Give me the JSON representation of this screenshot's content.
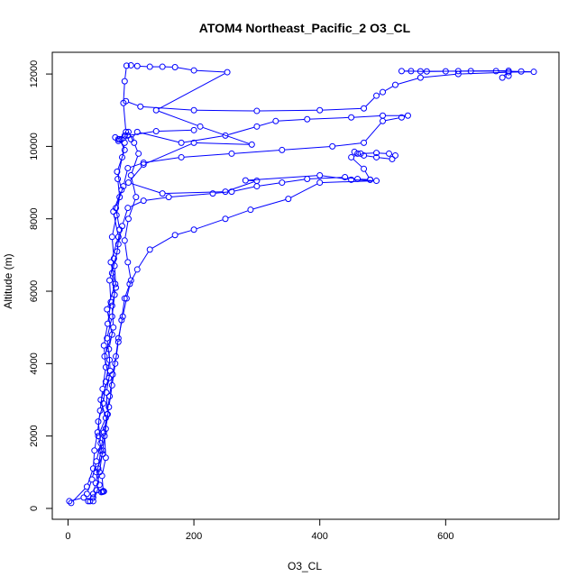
{
  "chart_data": {
    "type": "scatter",
    "title": "ATOM4 Northeast_Pacific_2 O3_CL",
    "xlabel": "O3_CL",
    "ylabel": "Altitude (m)",
    "xlim": [
      -25,
      780
    ],
    "ylim": [
      -300,
      12600
    ],
    "xticks": [
      0,
      200,
      400,
      600
    ],
    "yticks": [
      0,
      2000,
      4000,
      6000,
      8000,
      10000,
      12000
    ],
    "grid": false,
    "legend": "none",
    "colors": {
      "series": "#0000ff",
      "axis": "#000000"
    },
    "series": [
      {
        "style": "line+open-circle",
        "points": [
          [
            2,
            200
          ],
          [
            25,
            300
          ],
          [
            40,
            200
          ],
          [
            50,
            650
          ],
          [
            45,
            1000
          ],
          [
            55,
            1500
          ],
          [
            48,
            2000
          ],
          [
            60,
            2500
          ],
          [
            52,
            3000
          ],
          [
            65,
            3600
          ],
          [
            58,
            4200
          ],
          [
            70,
            4800
          ],
          [
            62,
            5500
          ],
          [
            75,
            6200
          ],
          [
            68,
            6800
          ],
          [
            80,
            7500
          ],
          [
            72,
            8200
          ],
          [
            85,
            8800
          ],
          [
            78,
            9300
          ],
          [
            90,
            9900
          ],
          [
            82,
            10200
          ],
          [
            92,
            10400
          ],
          [
            88,
            11200
          ],
          [
            90,
            11800
          ],
          [
            93,
            12230
          ],
          [
            100,
            12240
          ],
          [
            110,
            12220
          ],
          [
            130,
            12200
          ],
          [
            150,
            12200
          ],
          [
            170,
            12190
          ],
          [
            200,
            12100
          ],
          [
            253,
            12050
          ],
          [
            140,
            11000
          ],
          [
            210,
            10550
          ],
          [
            292,
            10050
          ],
          [
            200,
            10100
          ],
          [
            120,
            9500
          ],
          [
            96,
            9000
          ],
          [
            150,
            8700
          ],
          [
            250,
            8750
          ],
          [
            300,
            9050
          ],
          [
            282,
            9060
          ],
          [
            400,
            9200
          ],
          [
            450,
            9080
          ],
          [
            490,
            9050
          ],
          [
            400,
            9000
          ],
          [
            350,
            8550
          ],
          [
            290,
            8250
          ],
          [
            250,
            8000
          ],
          [
            200,
            7700
          ],
          [
            170,
            7550
          ],
          [
            130,
            7150
          ],
          [
            110,
            6600
          ],
          [
            98,
            6200
          ],
          [
            90,
            5800
          ],
          [
            85,
            5200
          ],
          [
            80,
            4600
          ],
          [
            75,
            4000
          ],
          [
            70,
            3400
          ],
          [
            65,
            2800
          ],
          [
            60,
            2200
          ],
          [
            55,
            1600
          ],
          [
            50,
            1000
          ],
          [
            45,
            500
          ],
          [
            40,
            300
          ],
          [
            35,
            200
          ]
        ]
      },
      {
        "style": "line+open-circle",
        "points": [
          [
            30,
            400
          ],
          [
            38,
            800
          ],
          [
            45,
            1300
          ],
          [
            52,
            1800
          ],
          [
            48,
            2400
          ],
          [
            56,
            2900
          ],
          [
            60,
            3500
          ],
          [
            66,
            4100
          ],
          [
            62,
            4700
          ],
          [
            70,
            5300
          ],
          [
            74,
            5900
          ],
          [
            70,
            6500
          ],
          [
            78,
            7100
          ],
          [
            82,
            7700
          ],
          [
            76,
            8300
          ],
          [
            88,
            8900
          ],
          [
            95,
            9400
          ],
          [
            120,
            9550
          ],
          [
            180,
            9700
          ],
          [
            260,
            9800
          ],
          [
            340,
            9900
          ],
          [
            420,
            10000
          ],
          [
            470,
            10100
          ],
          [
            500,
            10700
          ],
          [
            530,
            10800
          ],
          [
            540,
            10850
          ],
          [
            500,
            10850
          ],
          [
            450,
            10800
          ],
          [
            380,
            10750
          ],
          [
            330,
            10700
          ],
          [
            300,
            10550
          ],
          [
            250,
            10300
          ],
          [
            180,
            10100
          ],
          [
            110,
            10400
          ],
          [
            100,
            10200
          ],
          [
            90,
            10300
          ],
          [
            85,
            10200
          ],
          [
            80,
            10150
          ],
          [
            75,
            10250
          ],
          [
            80,
            10200
          ],
          [
            95,
            10300
          ],
          [
            140,
            10420
          ],
          [
            200,
            10450
          ]
        ]
      },
      {
        "style": "line+open-circle",
        "points": [
          [
            53,
            450
          ],
          [
            55,
            460
          ],
          [
            57,
            470
          ],
          [
            56,
            480
          ],
          [
            54,
            900
          ],
          [
            60,
            1400
          ],
          [
            58,
            2000
          ],
          [
            63,
            2600
          ],
          [
            61,
            3200
          ],
          [
            67,
            3800
          ],
          [
            65,
            4400
          ],
          [
            72,
            5000
          ],
          [
            70,
            5600
          ],
          [
            76,
            6100
          ],
          [
            74,
            6700
          ],
          [
            80,
            7300
          ],
          [
            86,
            7800
          ],
          [
            95,
            8300
          ],
          [
            120,
            8500
          ],
          [
            160,
            8600
          ],
          [
            230,
            8700
          ],
          [
            260,
            8750
          ],
          [
            300,
            8900
          ],
          [
            340,
            9000
          ],
          [
            380,
            9100
          ],
          [
            440,
            9150
          ],
          [
            460,
            9100
          ],
          [
            480,
            9080
          ]
        ]
      },
      {
        "style": "line+open-circle",
        "points": [
          [
            480,
            9080
          ],
          [
            470,
            9380
          ],
          [
            450,
            9700
          ],
          [
            465,
            9800
          ],
          [
            490,
            9820
          ],
          [
            510,
            9800
          ],
          [
            520,
            9750
          ],
          [
            515,
            9650
          ],
          [
            490,
            9700
          ],
          [
            470,
            9750
          ],
          [
            460,
            9800
          ],
          [
            455,
            9850
          ]
        ]
      },
      {
        "style": "line+open-circle",
        "points": [
          [
            92,
            11250
          ],
          [
            115,
            11100
          ],
          [
            200,
            11000
          ],
          [
            300,
            10980
          ],
          [
            400,
            11000
          ],
          [
            470,
            11050
          ],
          [
            490,
            11400
          ],
          [
            500,
            11500
          ],
          [
            520,
            11700
          ],
          [
            560,
            11900
          ],
          [
            620,
            12000
          ],
          [
            700,
            12050
          ],
          [
            740,
            12060
          ],
          [
            720,
            12070
          ],
          [
            680,
            12080
          ],
          [
            640,
            12080
          ],
          [
            600,
            12075
          ],
          [
            560,
            12075
          ],
          [
            530,
            12080
          ],
          [
            545,
            12080
          ],
          [
            570,
            12070
          ],
          [
            620,
            12080
          ],
          [
            700,
            12090
          ],
          [
            690,
            11900
          ],
          [
            700,
            11950
          ]
        ]
      },
      {
        "style": "line+open-circle",
        "points": [
          [
            5,
            150
          ],
          [
            30,
            600
          ],
          [
            40,
            1100
          ],
          [
            42,
            1600
          ],
          [
            47,
            2100
          ],
          [
            51,
            2700
          ],
          [
            55,
            3300
          ],
          [
            60,
            3900
          ],
          [
            57,
            4500
          ],
          [
            63,
            5100
          ],
          [
            68,
            5700
          ],
          [
            66,
            6300
          ],
          [
            73,
            6900
          ],
          [
            70,
            7500
          ],
          [
            77,
            8100
          ],
          [
            82,
            8600
          ],
          [
            79,
            9100
          ],
          [
            86,
            9700
          ],
          [
            90,
            10100
          ],
          [
            96,
            10400
          ],
          [
            105,
            10100
          ],
          [
            112,
            9800
          ],
          [
            100,
            9200
          ],
          [
            108,
            8600
          ],
          [
            96,
            8000
          ],
          [
            90,
            7400
          ],
          [
            95,
            6800
          ],
          [
            100,
            6300
          ],
          [
            93,
            5800
          ],
          [
            87,
            5300
          ],
          [
            80,
            4700
          ],
          [
            76,
            4200
          ],
          [
            71,
            3700
          ],
          [
            66,
            3100
          ],
          [
            62,
            2600
          ],
          [
            57,
            2100
          ],
          [
            52,
            1600
          ],
          [
            48,
            1100
          ],
          [
            44,
            700
          ],
          [
            40,
            400
          ],
          [
            32,
            200
          ]
        ]
      }
    ]
  }
}
